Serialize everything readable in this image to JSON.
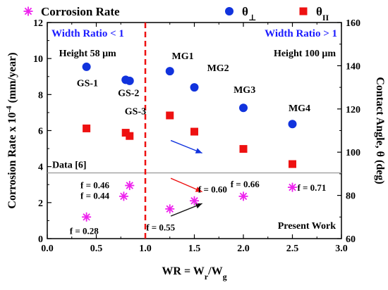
{
  "chart_data": {
    "type": "scatter",
    "xlabel": "WR = W",
    "xlabel_sub1": "r",
    "xlabel_mid": "/W",
    "xlabel_sub2": "g",
    "ylabel_left": "Corrosion Rate x 10",
    "ylabel_left_sup": "-4",
    "ylabel_left_unit": " (mm/year)",
    "ylabel_right": "Contact Angle, θ (deg)",
    "xlim": [
      0.0,
      3.0
    ],
    "ylim_left": [
      0,
      12
    ],
    "ylim_right": [
      60,
      160
    ],
    "x_ticks": [
      "0.0",
      "0.5",
      "1.0",
      "1.5",
      "2.0",
      "2.5",
      "3.0"
    ],
    "y_left_ticks": [
      "0",
      "2",
      "4",
      "6",
      "8",
      "10",
      "12"
    ],
    "y_right_ticks": [
      "60",
      "80",
      "100",
      "120",
      "140",
      "160"
    ],
    "legend_position": "top",
    "legend": [
      {
        "label": "Corrosion Rate",
        "marker": "asterisk",
        "color": "#ee22ee"
      },
      {
        "label": "θ",
        "sub": "⊥",
        "marker": "circle",
        "color": "#1133dd"
      },
      {
        "label": "θ",
        "sub": "II",
        "marker": "square",
        "color": "#ee1111"
      }
    ],
    "series": [
      {
        "legend_index": 0,
        "axis": "left",
        "x": [
          0.4,
          0.78,
          0.84,
          1.25,
          1.5,
          2.0,
          2.5
        ],
        "y": [
          1.2,
          2.35,
          2.95,
          1.65,
          2.1,
          2.35,
          2.85
        ]
      },
      {
        "legend_index": 1,
        "axis": "right",
        "x": [
          0.4,
          0.8,
          0.84,
          1.25,
          1.5,
          2.0,
          2.5
        ],
        "y": [
          139.5,
          133.5,
          133,
          137.5,
          130,
          120.5,
          113
        ]
      },
      {
        "legend_index": 2,
        "axis": "right",
        "x": [
          0.4,
          0.8,
          0.84,
          1.25,
          1.5,
          2.0,
          2.5
        ],
        "y": [
          111,
          109,
          107.5,
          117,
          109.5,
          101.5,
          94.5
        ]
      }
    ],
    "reference_line": {
      "label": "Data [6]",
      "axis": "left",
      "y": 3.65,
      "color": "#999999"
    },
    "divider": {
      "x": 1.0,
      "color": "#ee1111",
      "style": "dashed"
    },
    "annotations": {
      "region_left": "Width Ratio < 1",
      "region_right": "Width Ratio > 1",
      "height_left": "Height 58 μm",
      "height_right": "Height 100 μm",
      "present_work": "Present Work",
      "sample_labels": [
        {
          "text": "GS-1",
          "x": 0.3,
          "y_right": 130.5
        },
        {
          "text": "GS-2",
          "x": 0.72,
          "y_right": 126
        },
        {
          "text": "GS-3",
          "x": 0.79,
          "y_right": 117.5
        },
        {
          "text": "MG1",
          "x": 1.27,
          "y_right": 143
        },
        {
          "text": "MG2",
          "x": 1.63,
          "y_right": 137.5
        },
        {
          "text": "MG3",
          "x": 1.9,
          "y_right": 127.5
        },
        {
          "text": "MG4",
          "x": 2.46,
          "y_right": 119
        }
      ],
      "f_labels": [
        {
          "text": "f = 0.46",
          "x": 0.54,
          "y": 3.0
        },
        {
          "text": "f = 0.44",
          "x": 0.54,
          "y": 2.4
        },
        {
          "text": "f = 0.28",
          "x": 0.43,
          "y": 0.45
        },
        {
          "text": "f = 0.55",
          "x": 1.21,
          "y": 0.65
        },
        {
          "text": "f = 0.60",
          "x": 1.74,
          "y": 2.75
        },
        {
          "text": "f = 0.66",
          "x": 2.07,
          "y": 3.05
        },
        {
          "text": "f = 0.71",
          "x": 2.87,
          "y": 2.85
        }
      ],
      "arrows": [
        {
          "color": "#1133dd",
          "from": [
            1.26,
            5.45
          ],
          "to": [
            1.58,
            4.75
          ],
          "axis": "left-scale"
        },
        {
          "color": "#ee1111",
          "from": [
            1.26,
            3.35
          ],
          "to": [
            1.58,
            2.6
          ],
          "axis": "left-scale"
        },
        {
          "color": "#111111",
          "from": [
            1.26,
            1.25
          ],
          "to": [
            1.58,
            1.95
          ],
          "axis": "left-scale"
        }
      ]
    }
  }
}
